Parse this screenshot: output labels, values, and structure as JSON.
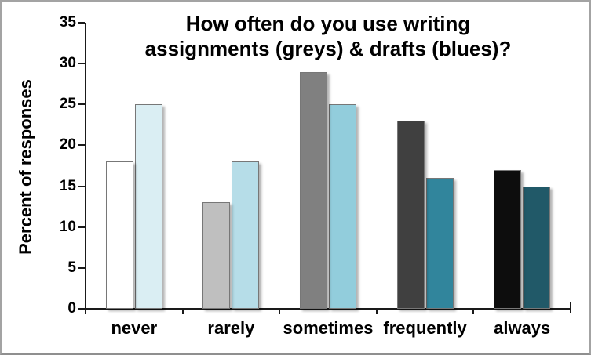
{
  "window": {
    "background": "#ffffff",
    "frame_border_color": "#a3a3a3"
  },
  "chart_data": {
    "type": "bar",
    "title": "How often do you use writing assignments (greys) & drafts (blues)?",
    "title_lines": [
      "How often do you use writing",
      "assignments (greys) & drafts (blues)?"
    ],
    "ylabel": "Percent of responses",
    "xlabel": "",
    "categories": [
      "never",
      "rarely",
      "sometimes",
      "frequently",
      "always"
    ],
    "series": [
      {
        "name": "writing assignments (greys)",
        "values": [
          18,
          13,
          29,
          23,
          17
        ],
        "bar_colors": [
          "#ffffff",
          "#bfbfbf",
          "#808080",
          "#404040",
          "#0d0d0d"
        ]
      },
      {
        "name": "drafts (blues)",
        "values": [
          25,
          18,
          25,
          16,
          15
        ],
        "bar_colors": [
          "#daeef3",
          "#b6dde8",
          "#92cddc",
          "#31859c",
          "#215968"
        ]
      }
    ],
    "ylim": [
      0,
      35
    ],
    "yticks": [
      0,
      5,
      10,
      15,
      20,
      25,
      30,
      35
    ],
    "grid": false,
    "legend_position": "none",
    "axis_color": "#1a1a1a",
    "bar_border_color": "#777777"
  }
}
